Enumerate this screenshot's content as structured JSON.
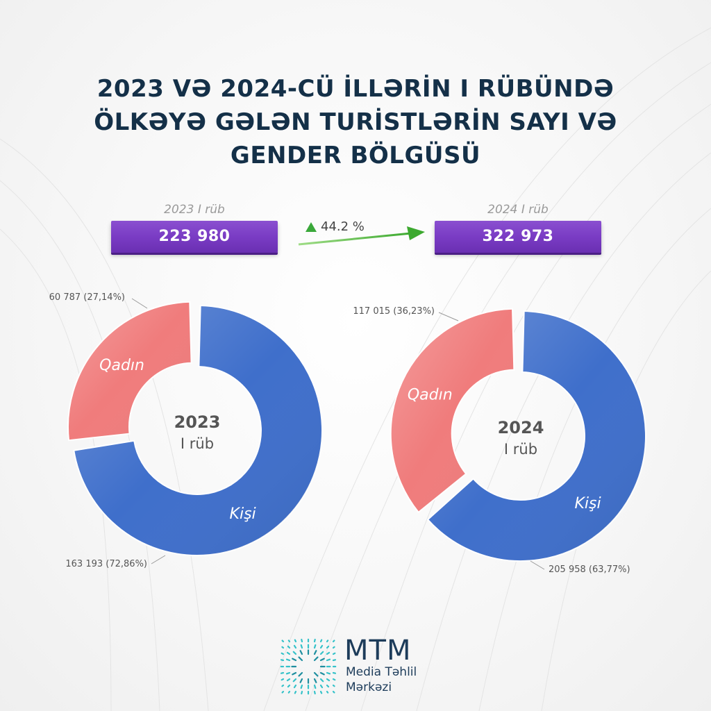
{
  "title": {
    "line1": "2023 VƏ 2024-CÜ İLLƏRİN I RÜBÜNDƏ",
    "line2": "ÖLKƏYƏ GƏLƏN TURİSTLƏRİN SAYI VƏ",
    "line3": "GENDER BÖLGÜSÜ"
  },
  "totals": [
    {
      "period": "2023 I rüb",
      "value": "223 980"
    },
    {
      "period": "2024 I rüb",
      "value": "322 973"
    }
  ],
  "growth": {
    "label": "44.2 %"
  },
  "colors": {
    "male": "#3f6fcb",
    "female": "#f07c7c",
    "box": "#7a3cc4",
    "title": "#143048",
    "arrow": "#4cb83a"
  },
  "chart_data": [
    {
      "type": "pie",
      "center_label": {
        "line1": "2023",
        "line2": "I rüb"
      },
      "slices": [
        {
          "name": "Kişi",
          "value": 163193,
          "percent": 72.86,
          "label": "163 193 (72,86%)"
        },
        {
          "name": "Qadın",
          "value": 60787,
          "percent": 27.14,
          "label": "60 787 (27,14%)"
        }
      ]
    },
    {
      "type": "pie",
      "center_label": {
        "line1": "2024",
        "line2": "I rüb"
      },
      "slices": [
        {
          "name": "Kişi",
          "value": 205958,
          "percent": 63.77,
          "label": "205 958 (63,77%)"
        },
        {
          "name": "Qadın",
          "value": 117015,
          "percent": 36.23,
          "label": "117 015 (36,23%)"
        }
      ]
    }
  ],
  "logo": {
    "name": "MTM",
    "sub1": "Media Təhlil",
    "sub2": "Mərkəzi"
  }
}
